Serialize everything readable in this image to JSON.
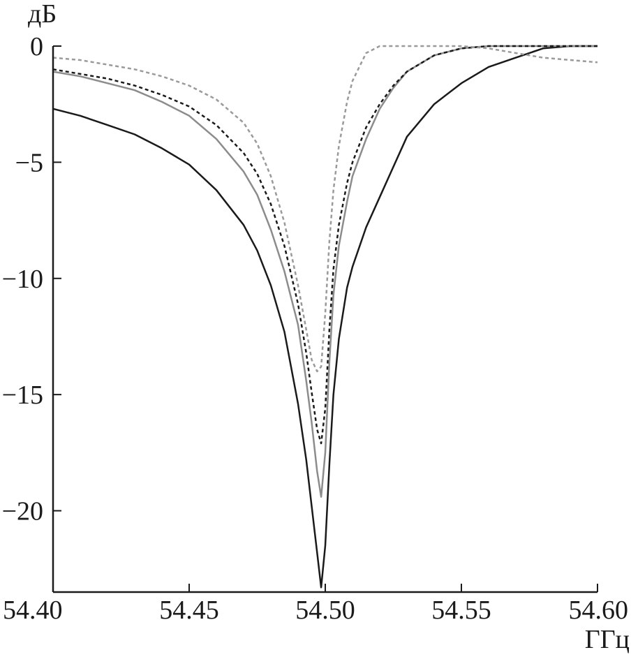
{
  "chart_data": {
    "type": "line",
    "title": "",
    "xlabel": "ГГц",
    "ylabel": "дБ",
    "xlim": [
      54.4,
      54.6
    ],
    "ylim": [
      -23.5,
      0
    ],
    "grid": false,
    "x_ticks": [
      {
        "value": 54.4,
        "label": "54.40"
      },
      {
        "value": 54.45,
        "label": "54.45"
      },
      {
        "value": 54.5,
        "label": "54.50"
      },
      {
        "value": 54.55,
        "label": "54.55"
      },
      {
        "value": 54.6,
        "label": "54.60"
      }
    ],
    "y_ticks": [
      {
        "value": 0,
        "label": "0"
      },
      {
        "value": -5,
        "label": "−5"
      },
      {
        "value": -10,
        "label": "−10"
      },
      {
        "value": -15,
        "label": "−15"
      },
      {
        "value": -20,
        "label": "−20"
      }
    ],
    "series": [
      {
        "style": "solid-black",
        "color": "#1a1a1a",
        "dash": "",
        "x": [
          54.4,
          54.41,
          54.42,
          54.43,
          54.44,
          54.45,
          54.46,
          54.47,
          54.475,
          54.48,
          54.485,
          54.49,
          54.493,
          54.495,
          54.497,
          54.4985,
          54.5,
          54.5015,
          54.503,
          54.505,
          54.508,
          54.51,
          54.515,
          54.52,
          54.525,
          54.53,
          54.54,
          54.55,
          54.56,
          54.57,
          54.58,
          54.59,
          54.6
        ],
        "y": [
          -2.7,
          -3.0,
          -3.4,
          -3.8,
          -4.4,
          -5.1,
          -6.2,
          -7.7,
          -8.8,
          -10.3,
          -12.3,
          -15.4,
          -17.8,
          -19.8,
          -21.8,
          -23.3,
          -21.5,
          -18.0,
          -15.0,
          -12.6,
          -10.4,
          -9.5,
          -7.8,
          -6.5,
          -5.2,
          -3.9,
          -2.5,
          -1.6,
          -0.9,
          -0.5,
          -0.1,
          0.0,
          0.0
        ]
      },
      {
        "style": "solid-gray",
        "color": "#8c8c8c",
        "dash": "",
        "x": [
          54.4,
          54.41,
          54.42,
          54.43,
          54.44,
          54.45,
          54.46,
          54.47,
          54.475,
          54.48,
          54.485,
          54.49,
          54.493,
          54.495,
          54.497,
          54.4985,
          54.5,
          54.5015,
          54.503,
          54.505,
          54.508,
          54.51,
          54.515,
          54.52,
          54.525,
          54.53,
          54.54,
          54.55,
          54.56,
          54.57,
          54.58,
          54.59,
          54.6
        ],
        "y": [
          -1.1,
          -1.3,
          -1.6,
          -1.9,
          -2.4,
          -3.0,
          -4.0,
          -5.4,
          -6.4,
          -7.9,
          -9.7,
          -12.0,
          -14.4,
          -16.2,
          -18.3,
          -19.4,
          -17.5,
          -13.6,
          -10.7,
          -8.6,
          -6.7,
          -5.6,
          -4.0,
          -2.7,
          -1.8,
          -1.1,
          -0.4,
          -0.1,
          0.0,
          0.0,
          0.0,
          0.0,
          0.0
        ]
      },
      {
        "style": "dashed-black",
        "color": "#1a1a1a",
        "dash": "5,4",
        "x": [
          54.4,
          54.41,
          54.42,
          54.43,
          54.44,
          54.45,
          54.46,
          54.47,
          54.475,
          54.48,
          54.485,
          54.49,
          54.493,
          54.495,
          54.497,
          54.4985,
          54.5,
          54.5015,
          54.503,
          54.505,
          54.508,
          54.51,
          54.515,
          54.52,
          54.525,
          54.53,
          54.54,
          54.55,
          54.56,
          54.57,
          54.58,
          54.59,
          54.6
        ],
        "y": [
          -1.0,
          -1.2,
          -1.4,
          -1.7,
          -2.1,
          -2.6,
          -3.4,
          -4.6,
          -5.5,
          -6.8,
          -8.6,
          -11.1,
          -13.2,
          -14.9,
          -16.5,
          -17.1,
          -15.6,
          -12.2,
          -9.6,
          -7.7,
          -5.9,
          -5.0,
          -3.5,
          -2.5,
          -1.7,
          -1.1,
          -0.4,
          -0.1,
          0.0,
          0.0,
          0.0,
          0.0,
          0.0
        ]
      },
      {
        "style": "dashed-gray",
        "color": "#9a9a9a",
        "dash": "5,4",
        "x": [
          54.4,
          54.41,
          54.42,
          54.43,
          54.44,
          54.45,
          54.46,
          54.47,
          54.475,
          54.48,
          54.485,
          54.49,
          54.493,
          54.495,
          54.497,
          54.4985,
          54.5,
          54.5015,
          54.503,
          54.505,
          54.508,
          54.51,
          54.515,
          54.52,
          54.525,
          54.53,
          54.54,
          54.55,
          54.56,
          54.57,
          54.58,
          54.59,
          54.6
        ],
        "y": [
          -0.5,
          -0.6,
          -0.8,
          -1.0,
          -1.3,
          -1.7,
          -2.3,
          -3.3,
          -4.2,
          -5.6,
          -7.6,
          -10.3,
          -12.2,
          -13.5,
          -14.0,
          -13.8,
          -11.5,
          -8.4,
          -6.2,
          -4.3,
          -2.4,
          -1.5,
          -0.3,
          0.0,
          0.0,
          0.0,
          0.0,
          0.0,
          -0.1,
          -0.3,
          -0.5,
          -0.6,
          -0.7
        ]
      }
    ]
  }
}
